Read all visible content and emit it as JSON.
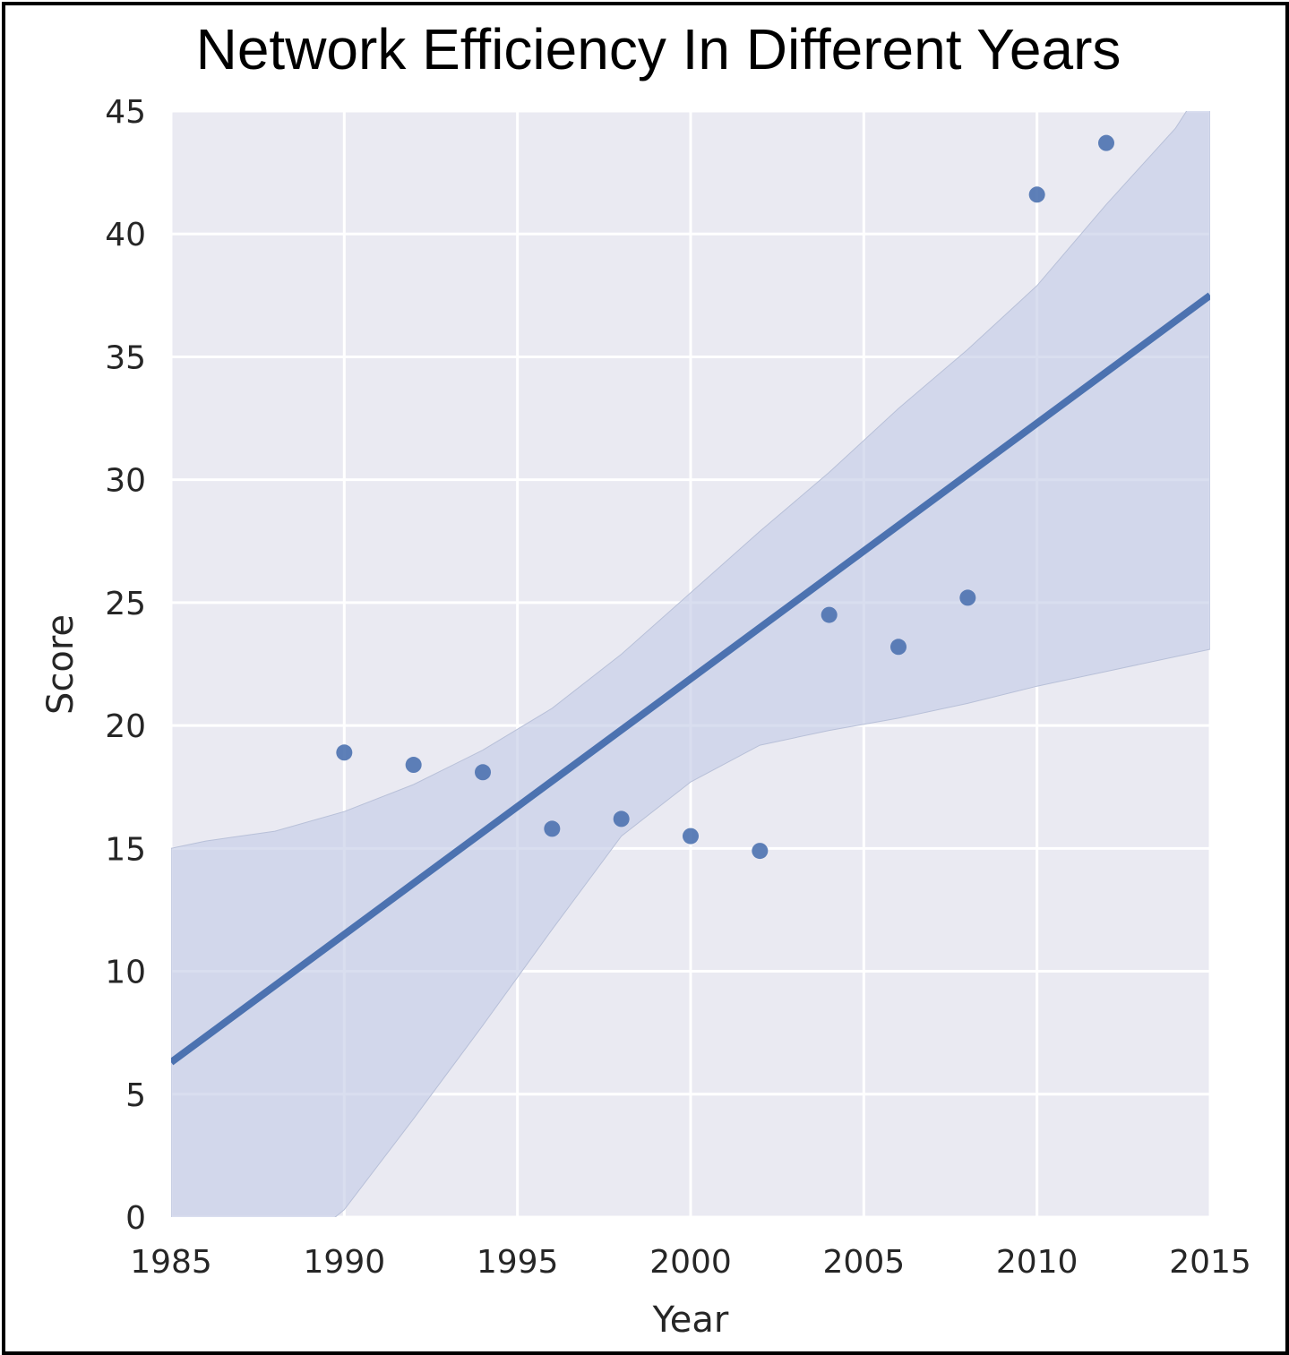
{
  "chart_data": {
    "type": "scatter",
    "title": "Network Efficiency In Different Years",
    "xlabel": "Year",
    "ylabel": "Score",
    "xlim": [
      1985,
      2015
    ],
    "ylim": [
      0,
      45
    ],
    "xticks": [
      "1985",
      "1990",
      "1995",
      "2000",
      "2005",
      "2010",
      "2015"
    ],
    "yticks": [
      "0",
      "5",
      "10",
      "15",
      "20",
      "25",
      "30",
      "35",
      "40",
      "45"
    ],
    "grid": true,
    "points": {
      "x": [
        1990,
        1992,
        1994,
        1996,
        1998,
        2000,
        2002,
        2004,
        2006,
        2008,
        2010,
        2012
      ],
      "y": [
        18.9,
        18.4,
        18.1,
        15.8,
        16.2,
        15.5,
        14.9,
        24.5,
        23.2,
        25.2,
        41.6,
        43.7
      ]
    },
    "regression_line": {
      "x": [
        1985,
        2015
      ],
      "y": [
        6.3,
        37.5
      ]
    },
    "confidence_band": {
      "x": [
        1985,
        1986,
        1988,
        1990,
        1992,
        1994,
        1996,
        1998,
        2000,
        2002,
        2004,
        2006,
        2008,
        2010,
        2012,
        2014,
        2015
      ],
      "upper": [
        15.0,
        15.3,
        15.7,
        16.5,
        17.6,
        19.0,
        20.7,
        22.9,
        25.4,
        27.9,
        30.3,
        32.9,
        35.3,
        37.9,
        41.2,
        44.3,
        46.5
      ],
      "lower": [
        -6.0,
        -4.0,
        -2.0,
        0.3,
        4.0,
        7.8,
        11.7,
        15.5,
        17.7,
        19.2,
        19.8,
        20.3,
        20.9,
        21.6,
        22.2,
        22.8,
        23.1
      ]
    },
    "colors": {
      "point": "#4c72b0",
      "line": "#4c72b0",
      "band": "#c4cde6",
      "plot_bg": "#eaeaf2",
      "grid": "#ffffff"
    }
  }
}
